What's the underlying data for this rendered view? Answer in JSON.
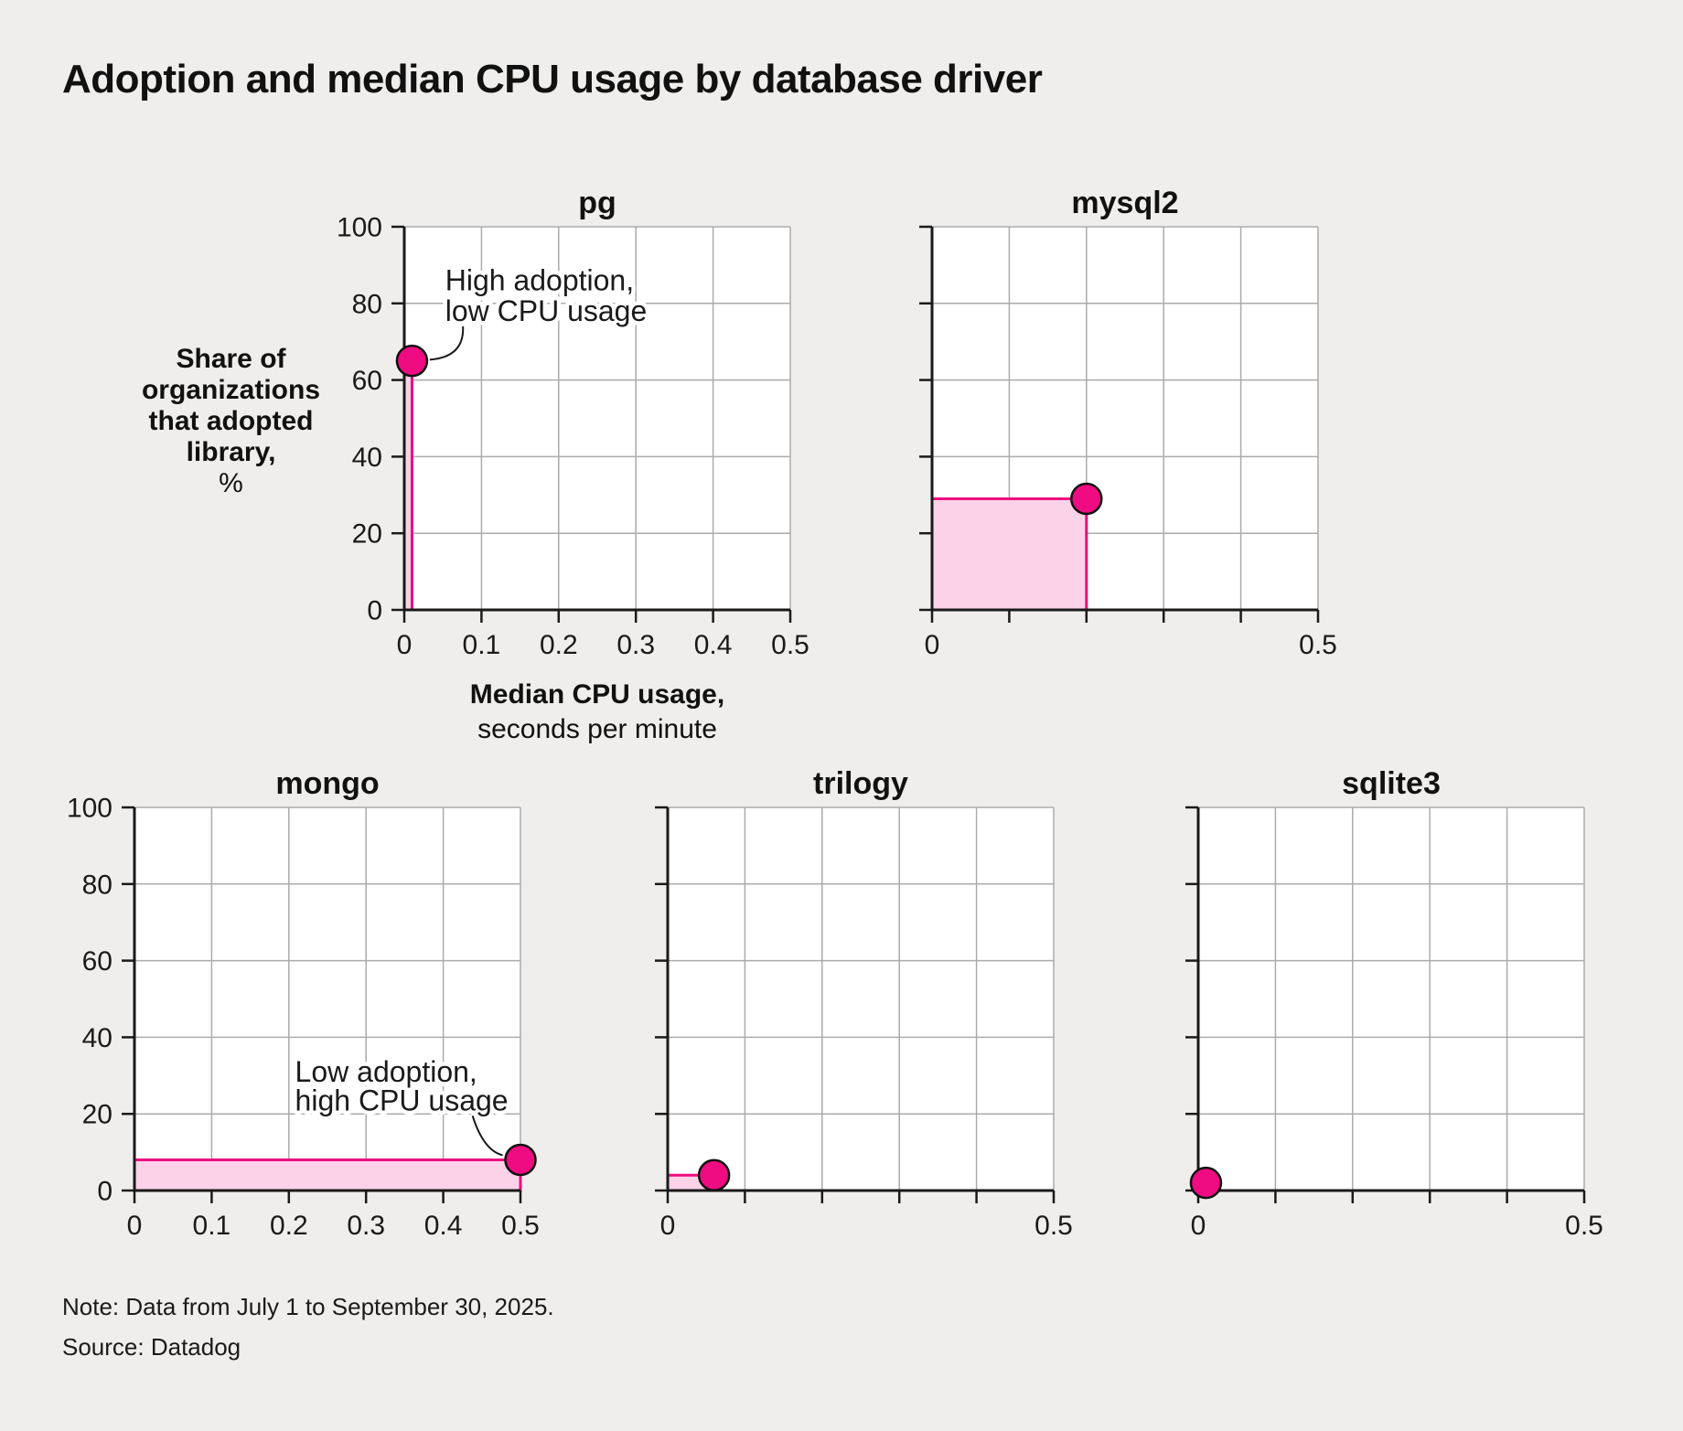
{
  "page": {
    "title": "Adoption and median CPU usage by database driver",
    "note": "Note: Data from July 1 to September 30, 2025.",
    "source": "Source: Datadog"
  },
  "axis_labels": {
    "y_lines": [
      "Share of",
      "organizations",
      "that adopted",
      "library,"
    ],
    "y_unit": "%",
    "x_bold": "Median CPU usage,",
    "x_regular": "seconds per minute"
  },
  "colors": {
    "background": "#efeeec",
    "plot_background": "#ffffff",
    "gridline": "#ababab",
    "axis": "#1a1a1a",
    "text": "#1a1a1a",
    "accent": "#ef0b81",
    "accent_fill": "#fbd2e8",
    "dot_outline": "#111111"
  },
  "chart_data": {
    "type": "scatter",
    "title": "Adoption and median CPU usage by database driver",
    "xlabel": "Median CPU usage, seconds per minute",
    "ylabel": "Share of organizations that adopted library, %",
    "xlim": [
      0,
      0.5
    ],
    "ylim": [
      0,
      100
    ],
    "grid": true,
    "x_ticks": [
      0,
      0.1,
      0.2,
      0.3,
      0.4,
      0.5
    ],
    "y_ticks": [
      0,
      20,
      40,
      60,
      80,
      100
    ],
    "x_tick_labels": [
      "0",
      "0.1",
      "0.2",
      "0.3",
      "0.4",
      "0.5"
    ],
    "y_tick_labels": [
      "0",
      "20",
      "40",
      "60",
      "80",
      "100"
    ],
    "series": [
      {
        "name": "pg",
        "x": 0.01,
        "y": 65
      },
      {
        "name": "mysql2",
        "x": 0.2,
        "y": 29
      },
      {
        "name": "mongo",
        "x": 0.5,
        "y": 8
      },
      {
        "name": "trilogy",
        "x": 0.06,
        "y": 4
      },
      {
        "name": "sqlite3",
        "x": 0.01,
        "y": 2
      }
    ],
    "annotations": [
      {
        "series": "pg",
        "lines": [
          "High adoption,",
          "low CPU usage"
        ],
        "text_x": 0.053,
        "text_y": [
          86,
          78
        ],
        "curve": {
          "x1": 0.076,
          "y1": 74,
          "cx": 0.078,
          "cy": 66,
          "x2": 0.033,
          "y2": 65.3
        }
      },
      {
        "series": "mongo",
        "lines": [
          "Low adoption,",
          "high CPU usage"
        ],
        "text_x": 0.208,
        "text_y": [
          31,
          23.5
        ],
        "curve": {
          "x1": 0.438,
          "y1": 19.5,
          "cx": 0.452,
          "cy": 10.5,
          "x2": 0.477,
          "y2": 9.2
        }
      }
    ]
  }
}
